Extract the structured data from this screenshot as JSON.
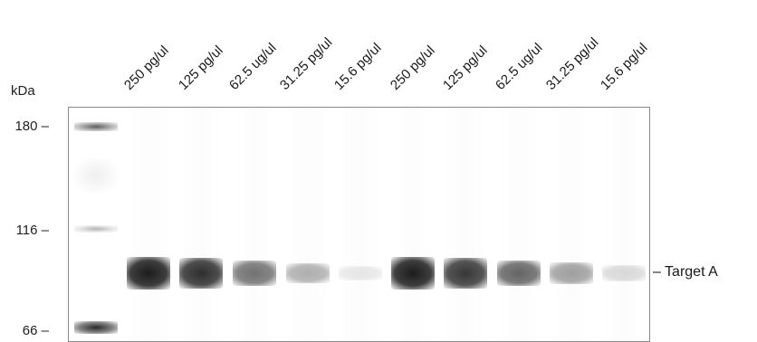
{
  "lane_labels": [
    "250 pg/ul",
    "125 pg/ul",
    "62.5 ug/ul",
    "31.25 pg/ul",
    "15.6 pg/ul",
    "250 pg/ul",
    "125 pg/ul",
    "62.5 ug/ul",
    "31.25 pg/ul",
    "15.6 pg/ul"
  ],
  "axis_title": "kDa",
  "markers": [
    {
      "label": "180 –",
      "value": 180
    },
    {
      "label": "116 –",
      "value": 116
    },
    {
      "label": "66 –",
      "value": 66
    }
  ],
  "target_label": "– Target A",
  "band_intensity": [
    1.0,
    0.92,
    0.62,
    0.35,
    0.1,
    1.0,
    0.88,
    0.68,
    0.42,
    0.16
  ],
  "colors": {
    "band": "#1c1c1c",
    "ladder": "#3a3a3a",
    "frame": "#8a8a8a"
  }
}
